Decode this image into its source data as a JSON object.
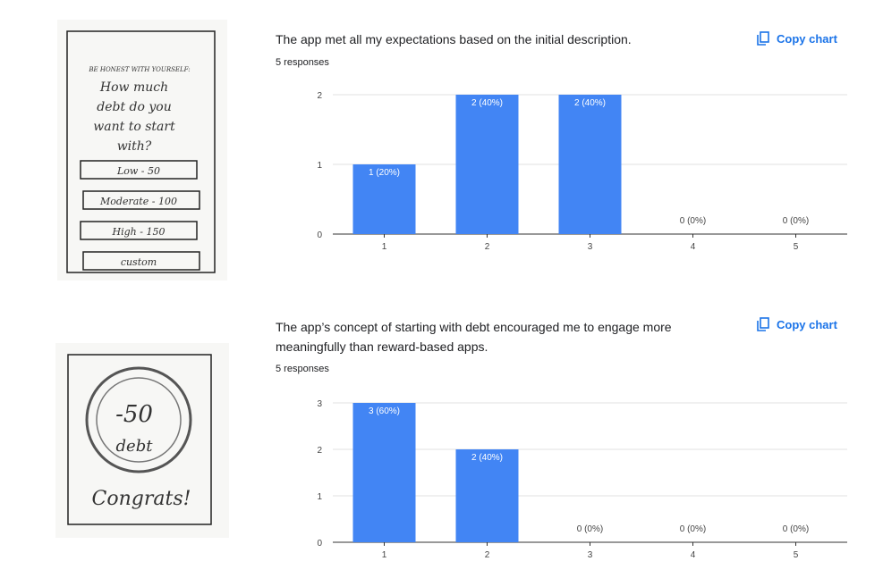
{
  "chart_data": [
    {
      "type": "bar",
      "title": "The app met all my expectations based on the initial description.",
      "subtitle": "5 responses",
      "action": "Copy chart",
      "categories": [
        "1",
        "2",
        "3",
        "4",
        "5"
      ],
      "values": [
        1,
        2,
        2,
        0,
        0
      ],
      "value_labels": [
        "1 (20%)",
        "2 (40%)",
        "2 (40%)",
        "0 (0%)",
        "0 (0%)"
      ],
      "color": "#4285f4",
      "ylim": [
        0,
        2
      ],
      "yticks": [
        0,
        1,
        2
      ],
      "grid": true
    },
    {
      "type": "bar",
      "title": "The app’s concept of starting with debt encouraged me to engage more meaningfully than reward-based apps.",
      "subtitle": "5 responses",
      "action": "Copy chart",
      "categories": [
        "1",
        "2",
        "3",
        "4",
        "5"
      ],
      "values": [
        3,
        2,
        0,
        0,
        0
      ],
      "value_labels": [
        "3 (60%)",
        "2 (40%)",
        "0 (0%)",
        "0 (0%)",
        "0 (0%)"
      ],
      "color": "#4285f4",
      "ylim": [
        0,
        3
      ],
      "yticks": [
        0,
        1,
        2,
        3
      ],
      "grid": true
    }
  ],
  "sketches": [
    {
      "heading": "BE HONEST WITH YOURSELF:",
      "question": [
        "How much",
        "debt do you",
        "want to start",
        "with?"
      ],
      "options": [
        "Low - 50",
        "Moderate - 100",
        "High - 150",
        "custom"
      ]
    },
    {
      "amount": "-50",
      "unit": "debt",
      "message": "Congrats!"
    }
  ]
}
